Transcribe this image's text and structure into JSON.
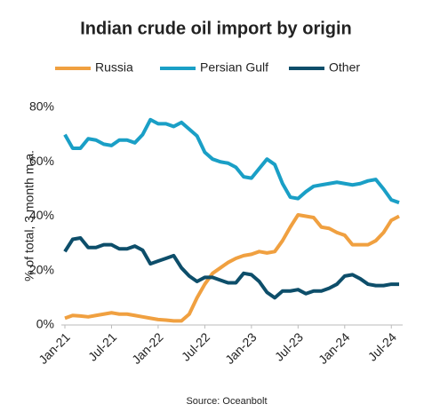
{
  "chart_data": {
    "type": "line",
    "title": "Indian crude oil import by origin",
    "y_label": "% of total, 3 month m.a.",
    "source": "Source: Oceanbolt",
    "legend": "top",
    "categories": [
      "Jan-21",
      null,
      null,
      null,
      null,
      null,
      "Jul-21",
      null,
      null,
      null,
      null,
      null,
      "Jan-22",
      null,
      null,
      null,
      null,
      null,
      "Jul-22",
      null,
      null,
      null,
      null,
      null,
      "Jan-23",
      null,
      null,
      null,
      null,
      null,
      "Jul-23",
      null,
      null,
      null,
      null,
      null,
      "Jan-24",
      null,
      null,
      null,
      null,
      null,
      "Jul-24",
      null
    ],
    "series": [
      {
        "name": "Russia",
        "color": "#f0a040",
        "values": [
          2.5,
          3.5,
          3.3,
          3,
          3.5,
          4,
          4.5,
          4,
          4,
          3.5,
          3,
          2.5,
          2,
          1.8,
          1.5,
          1.5,
          4,
          10,
          15,
          19,
          21,
          23,
          24.5,
          25.5,
          26,
          27,
          26.5,
          27,
          31,
          36,
          40.5,
          40,
          39.5,
          36,
          35.5,
          34,
          33,
          29.5,
          29.5,
          29.5,
          31,
          34,
          38.5,
          40
        ]
      },
      {
        "name": "Persian Gulf",
        "color": "#1a9fc6",
        "values": [
          70,
          65,
          65,
          68.5,
          68,
          66.5,
          66,
          68,
          68,
          67,
          70,
          75.5,
          74,
          74,
          73,
          74.5,
          72,
          69.5,
          63.5,
          61,
          60,
          59.5,
          58,
          54.5,
          54,
          57.5,
          61,
          59,
          52,
          47,
          46.5,
          49,
          51,
          51.5,
          52,
          52.5,
          52,
          51.5,
          52,
          53,
          53.5,
          50,
          46,
          45
        ]
      },
      {
        "name": "Other",
        "color": "#0d4e6a",
        "values": [
          27,
          31.5,
          32,
          28.5,
          28.5,
          29.5,
          29.5,
          28,
          28,
          29,
          27.5,
          22.5,
          23.5,
          24.5,
          25.5,
          21,
          18,
          16,
          17.5,
          17.5,
          16.5,
          15.5,
          15.5,
          19,
          18.5,
          16,
          12,
          10,
          12.5,
          12.5,
          13,
          11.5,
          12.5,
          12.5,
          13.5,
          15,
          18,
          18.5,
          17,
          15,
          14.5,
          14.5,
          15,
          15
        ]
      }
    ],
    "ylim": [
      0,
      80
    ],
    "yticks": [
      {
        "value": 0,
        "label": "0%"
      },
      {
        "value": 20,
        "label": "20%"
      },
      {
        "value": 40,
        "label": "40%"
      },
      {
        "value": 60,
        "label": "60%"
      },
      {
        "value": 80,
        "label": "80%"
      }
    ],
    "grid": false
  }
}
